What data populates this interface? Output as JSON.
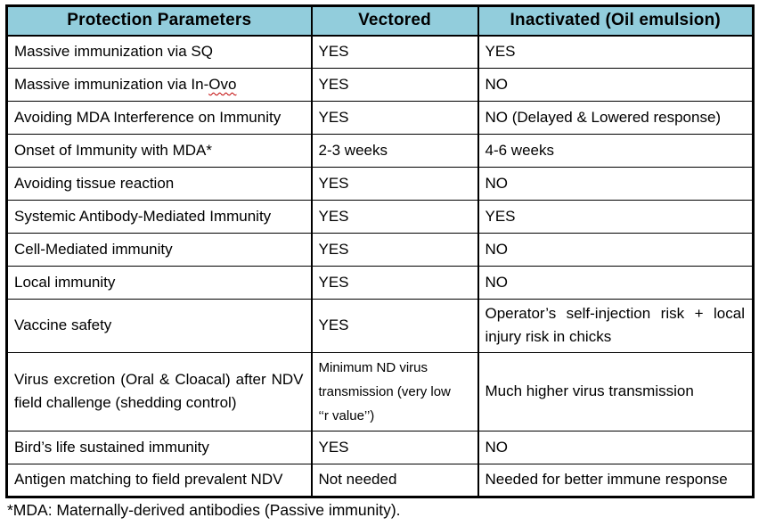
{
  "table": {
    "header_bg": "#92CDDC",
    "spellcheck_color": "#C00000",
    "headers": {
      "param": "Protection Parameters",
      "vectored": "Vectored",
      "inactivated": "Inactivated (Oil emulsion)"
    },
    "rows": [
      {
        "param": "Massive immunization via SQ",
        "vectored": "YES",
        "inactivated": "YES"
      },
      {
        "param": "Massive immunization via In-Ovo",
        "param_spellcheck": "Ovo",
        "vectored": "YES",
        "inactivated": "NO"
      },
      {
        "param": "Avoiding MDA Interference on Immunity",
        "vectored": "YES",
        "inactivated": "NO (Delayed & Lowered response)"
      },
      {
        "param": "Onset of Immunity with MDA*",
        "vectored": "2-3 weeks",
        "inactivated": "4-6 weeks"
      },
      {
        "param": "Avoiding tissue reaction",
        "vectored": "YES",
        "inactivated": "NO"
      },
      {
        "param": "Systemic Antibody-Mediated Immunity",
        "vectored": "YES",
        "inactivated": "YES"
      },
      {
        "param": "Cell-Mediated immunity",
        "vectored": "YES",
        "inactivated": "NO"
      },
      {
        "param": "Local immunity",
        "vectored": "YES",
        "inactivated": "NO"
      },
      {
        "param": "Vaccine safety",
        "vectored": "YES",
        "inactivated": "Operator’s self-injection risk + local injury risk in chicks"
      },
      {
        "param": "Virus excretion (Oral & Cloacal) after NDV field challenge (shedding control)",
        "vectored": "Minimum ND virus transmission (very low ‘‘r value’’)",
        "inactivated": "Much higher virus transmission"
      },
      {
        "param": "Bird’s life sustained immunity",
        "vectored": "YES",
        "inactivated": "NO"
      },
      {
        "param": "Antigen matching to field prevalent NDV",
        "vectored": "Not needed",
        "inactivated": "Needed for better immune response"
      }
    ]
  },
  "footnote": "*MDA: Maternally-derived antibodies (Passive immunity)."
}
